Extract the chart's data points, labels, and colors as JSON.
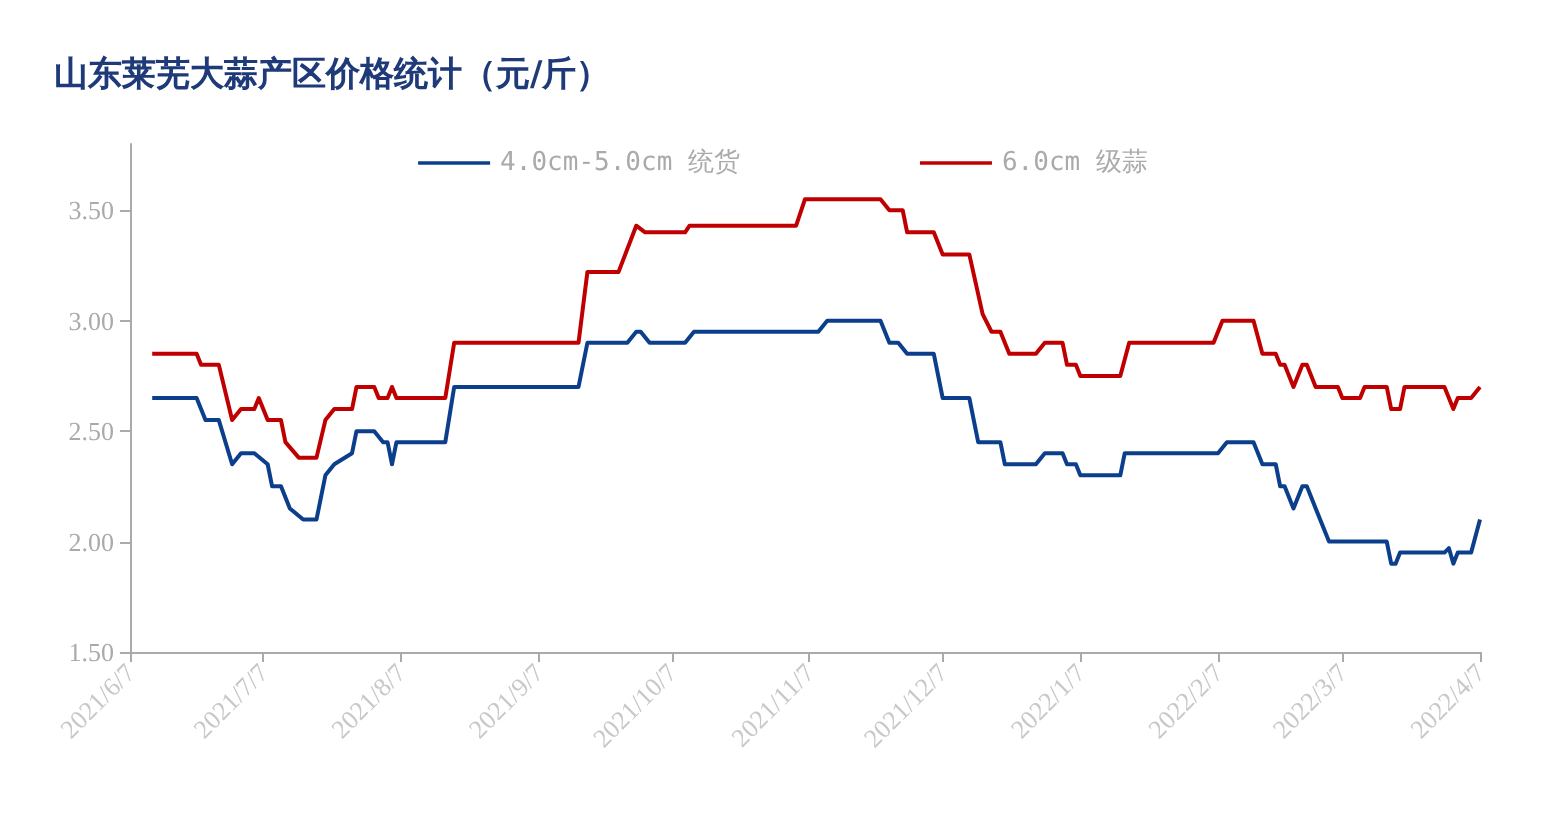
{
  "chart_data": {
    "type": "line",
    "title": "山东莱芜大蒜产区价格统计（元/斤）",
    "legend": "top",
    "grid": false,
    "marker": "none",
    "line_style": "solid",
    "xlim": [
      "2021-06-07",
      "2022-04-07"
    ],
    "xticks": [
      {
        "value": "2021-06-07",
        "label": "2021/6/7"
      },
      {
        "value": "2021-07-07",
        "label": "2021/7/7"
      },
      {
        "value": "2021-08-07",
        "label": "2021/8/7"
      },
      {
        "value": "2021-09-07",
        "label": "2021/9/7"
      },
      {
        "value": "2021-10-07",
        "label": "2021/10/7"
      },
      {
        "value": "2021-11-07",
        "label": "2021/11/7"
      },
      {
        "value": "2021-12-07",
        "label": "2021/12/7"
      },
      {
        "value": "2022-01-07",
        "label": "2022/1/7"
      },
      {
        "value": "2022-02-07",
        "label": "2022/2/7"
      },
      {
        "value": "2022-03-07",
        "label": "2022/3/7"
      },
      {
        "value": "2022-04-07",
        "label": "2022/4/7"
      }
    ],
    "ylim": [
      1.5,
      3.8
    ],
    "yticks": [
      {
        "value": 1.5,
        "label": "1.50"
      },
      {
        "value": 2,
        "label": "2.00"
      },
      {
        "value": 2.5,
        "label": "2.50"
      },
      {
        "value": 3,
        "label": "3.00"
      },
      {
        "value": 3.5,
        "label": "3.50"
      }
    ],
    "series": [
      {
        "name": "4.0cm-5.0cm 统货",
        "color": "#0b3f8c",
        "x": [
          "2021-06-12",
          "2021-06-22",
          "2021-06-24",
          "2021-06-27",
          "2021-06-30",
          "2021-07-02",
          "2021-07-05",
          "2021-07-08",
          "2021-07-09",
          "2021-07-11",
          "2021-07-13",
          "2021-07-16",
          "2021-07-19",
          "2021-07-21",
          "2021-07-23",
          "2021-07-27",
          "2021-07-28",
          "2021-08-01",
          "2021-08-03",
          "2021-08-04",
          "2021-08-05",
          "2021-08-06",
          "2021-08-17",
          "2021-08-19",
          "2021-09-16",
          "2021-09-18",
          "2021-09-27",
          "2021-09-29",
          "2021-09-30",
          "2021-10-02",
          "2021-10-10",
          "2021-10-12",
          "2021-11-09",
          "2021-11-11",
          "2021-11-23",
          "2021-11-25",
          "2021-11-27",
          "2021-11-29",
          "2021-12-05",
          "2021-12-07",
          "2021-12-13",
          "2021-12-15",
          "2021-12-20",
          "2021-12-21",
          "2021-12-28",
          "2021-12-30",
          "2022-01-03",
          "2022-01-04",
          "2022-01-06",
          "2022-01-07",
          "2022-01-16",
          "2022-01-17",
          "2022-02-07",
          "2022-02-09",
          "2022-02-15",
          "2022-02-17",
          "2022-02-20",
          "2022-02-21",
          "2022-02-22",
          "2022-02-24",
          "2022-02-26",
          "2022-02-27",
          "2022-03-01",
          "2022-03-02",
          "2022-03-04",
          "2022-03-17",
          "2022-03-18",
          "2022-03-19",
          "2022-03-20",
          "2022-03-30",
          "2022-03-31",
          "2022-04-01",
          "2022-04-02",
          "2022-04-05",
          "2022-04-07"
        ],
        "values": [
          2.65,
          2.65,
          2.55,
          2.55,
          2.35,
          2.4,
          2.4,
          2.35,
          2.25,
          2.25,
          2.15,
          2.1,
          2.1,
          2.3,
          2.35,
          2.4,
          2.5,
          2.5,
          2.45,
          2.45,
          2.35,
          2.45,
          2.45,
          2.7,
          2.7,
          2.9,
          2.9,
          2.95,
          2.95,
          2.9,
          2.9,
          2.95,
          2.95,
          3.0,
          3.0,
          2.9,
          2.9,
          2.85,
          2.85,
          2.65,
          2.65,
          2.45,
          2.45,
          2.35,
          2.35,
          2.4,
          2.4,
          2.35,
          2.35,
          2.3,
          2.3,
          2.4,
          2.4,
          2.45,
          2.45,
          2.35,
          2.35,
          2.25,
          2.25,
          2.15,
          2.25,
          2.25,
          2.15,
          2.1,
          2.0,
          2.0,
          1.9,
          1.9,
          1.95,
          1.95,
          1.97,
          1.9,
          1.95,
          1.95,
          2.1
        ]
      },
      {
        "name": "6.0cm 级蒜",
        "color": "#c00000",
        "x": [
          "2021-06-12",
          "2021-06-22",
          "2021-06-23",
          "2021-06-27",
          "2021-06-30",
          "2021-07-02",
          "2021-07-05",
          "2021-07-06",
          "2021-07-08",
          "2021-07-11",
          "2021-07-12",
          "2021-07-15",
          "2021-07-19",
          "2021-07-21",
          "2021-07-23",
          "2021-07-27",
          "2021-07-28",
          "2021-08-01",
          "2021-08-02",
          "2021-08-04",
          "2021-08-05",
          "2021-08-06",
          "2021-08-17",
          "2021-08-19",
          "2021-09-16",
          "2021-09-18",
          "2021-09-25",
          "2021-09-29",
          "2021-10-01",
          "2021-10-10",
          "2021-10-11",
          "2021-11-04",
          "2021-11-06",
          "2021-11-23",
          "2021-11-25",
          "2021-11-28",
          "2021-11-29",
          "2021-12-05",
          "2021-12-07",
          "2021-12-13",
          "2021-12-16",
          "2021-12-18",
          "2021-12-20",
          "2021-12-22",
          "2021-12-28",
          "2021-12-30",
          "2022-01-03",
          "2022-01-04",
          "2022-01-06",
          "2022-01-07",
          "2022-01-16",
          "2022-01-18",
          "2022-02-06",
          "2022-02-08",
          "2022-02-15",
          "2022-02-17",
          "2022-02-20",
          "2022-02-21",
          "2022-02-22",
          "2022-02-24",
          "2022-02-26",
          "2022-02-27",
          "2022-03-01",
          "2022-03-06",
          "2022-03-07",
          "2022-03-11",
          "2022-03-12",
          "2022-03-17",
          "2022-03-18",
          "2022-03-20",
          "2022-03-21",
          "2022-03-30",
          "2022-04-01",
          "2022-04-02",
          "2022-04-05",
          "2022-04-07"
        ],
        "values": [
          2.85,
          2.85,
          2.8,
          2.8,
          2.55,
          2.6,
          2.6,
          2.65,
          2.55,
          2.55,
          2.45,
          2.38,
          2.38,
          2.55,
          2.6,
          2.6,
          2.7,
          2.7,
          2.65,
          2.65,
          2.7,
          2.65,
          2.65,
          2.9,
          2.9,
          3.22,
          3.22,
          3.43,
          3.4,
          3.4,
          3.43,
          3.43,
          3.55,
          3.55,
          3.5,
          3.5,
          3.4,
          3.4,
          3.3,
          3.3,
          3.03,
          2.95,
          2.95,
          2.85,
          2.85,
          2.9,
          2.9,
          2.8,
          2.8,
          2.75,
          2.75,
          2.9,
          2.9,
          3.0,
          3.0,
          2.85,
          2.85,
          2.8,
          2.8,
          2.7,
          2.8,
          2.8,
          2.7,
          2.7,
          2.65,
          2.65,
          2.7,
          2.7,
          2.6,
          2.6,
          2.7,
          2.7,
          2.6,
          2.65,
          2.65,
          2.7
        ]
      }
    ]
  }
}
